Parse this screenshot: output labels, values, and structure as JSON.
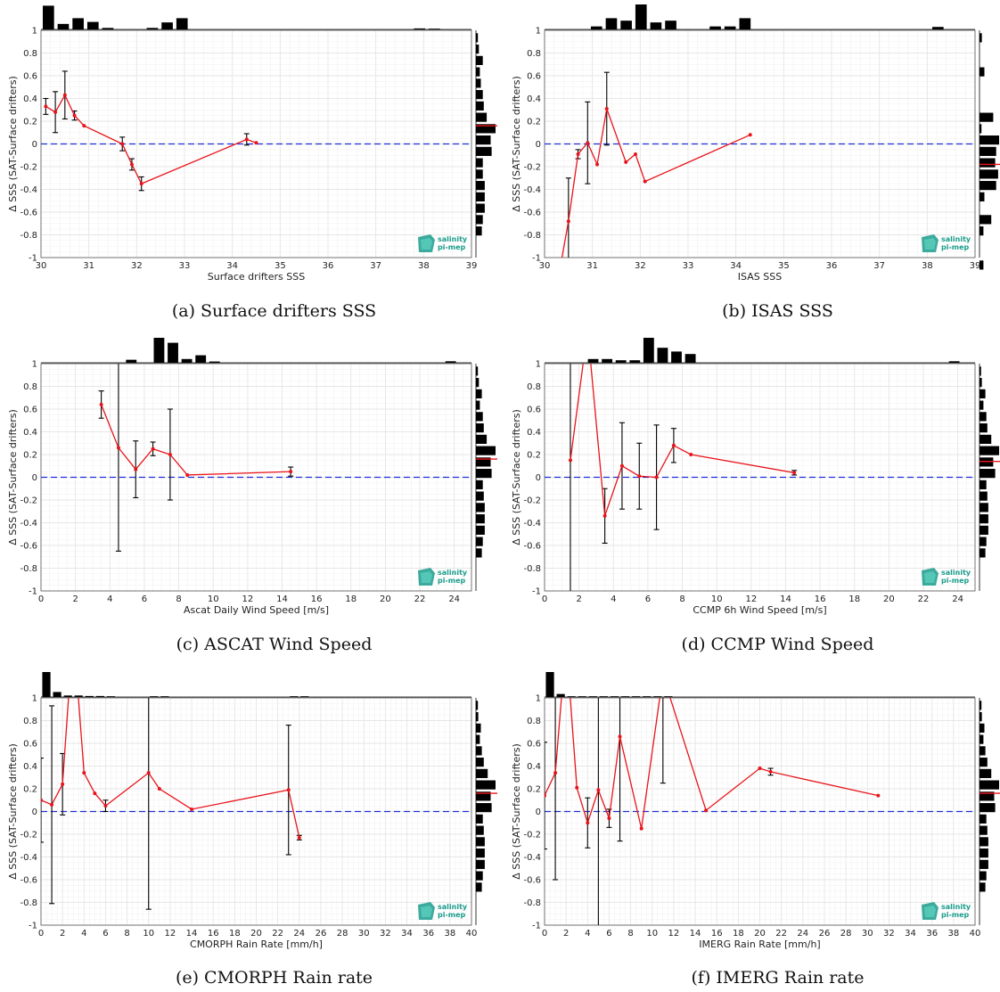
{
  "figure": {
    "ylabel": "Δ SSS (SAT-Surface drifters)",
    "logo": {
      "line1": "salinity",
      "line2": "pi-mep"
    }
  },
  "chart_data": [
    {
      "type": "line",
      "caption": "(a) Surface drifters SSS",
      "xlabel": "Surface drifters SSS",
      "xlim": [
        30,
        39
      ],
      "xticks": [
        30,
        31,
        32,
        33,
        34,
        35,
        36,
        37,
        38,
        39
      ],
      "ylim": [
        -1,
        1
      ],
      "yticks": [
        -1,
        -0.8,
        -0.6,
        -0.4,
        -0.2,
        0,
        0.2,
        0.4,
        0.6,
        0.8,
        1
      ],
      "grid": true,
      "x": [
        30.1,
        30.3,
        30.5,
        30.7,
        30.9,
        31.7,
        31.9,
        32.1,
        34.3,
        34.5
      ],
      "y": [
        0.33,
        0.28,
        0.43,
        0.25,
        0.16,
        0.0,
        -0.18,
        -0.35,
        0.04,
        0.01
      ],
      "err": [
        0.07,
        0.18,
        0.21,
        0.04,
        0.0,
        0.06,
        0.05,
        0.06,
        0.05,
        0.0
      ],
      "top_hist": [
        0.95,
        0.22,
        0.45,
        0.3,
        0.06,
        0.0,
        0.0,
        0.06,
        0.28,
        0.45,
        0.0,
        0.0,
        0.0,
        0.0,
        0.0,
        0.0,
        0.0,
        0.0,
        0.0,
        0.0,
        0.0,
        0.0,
        0.0,
        0.0,
        0.0,
        0.04,
        0.03,
        0.0,
        0.0
      ],
      "right_hist": [
        0.1,
        0.15,
        0.35,
        0.2,
        0.25,
        0.35,
        0.4,
        0.55,
        1.0,
        0.75,
        0.8,
        0.35,
        0.35,
        0.45,
        0.45,
        0.45,
        0.35,
        0.3
      ],
      "right_mean": 0.16
    },
    {
      "type": "line",
      "caption": "(b) ISAS SSS",
      "xlabel": "ISAS SSS",
      "xlim": [
        30,
        39
      ],
      "xticks": [
        30,
        31,
        32,
        33,
        34,
        35,
        36,
        37,
        38,
        39
      ],
      "ylim": [
        -1,
        1
      ],
      "yticks": [
        -1,
        -0.8,
        -0.6,
        -0.4,
        -0.2,
        0,
        0.2,
        0.4,
        0.6,
        0.8,
        1
      ],
      "grid": true,
      "x": [
        30.3,
        30.5,
        30.7,
        30.9,
        31.1,
        31.3,
        31.7,
        31.9,
        32.1,
        34.3
      ],
      "y": [
        -1.15,
        -0.68,
        -0.09,
        0.01,
        -0.18,
        0.31,
        -0.16,
        -0.09,
        -0.33,
        0.08
      ],
      "err": [
        0.0,
        0.38,
        0.04,
        0.36,
        0.0,
        0.32,
        0.0,
        0.0,
        0.0,
        0.0
      ],
      "top_hist": [
        0.0,
        0.0,
        0.0,
        0.12,
        0.45,
        0.35,
        1.0,
        0.28,
        0.35,
        0.0,
        0.0,
        0.12,
        0.12,
        0.45,
        0.0,
        0.0,
        0.0,
        0.0,
        0.0,
        0.0,
        0.0,
        0.0,
        0.0,
        0.0,
        0.0,
        0.0,
        0.1,
        0.0,
        0.0
      ],
      "right_hist": [
        0.12,
        0.0,
        0.0,
        0.25,
        0.0,
        0.0,
        0.0,
        0.7,
        0.1,
        1.0,
        0.85,
        0.8,
        0.95,
        0.85,
        0.25,
        0.0,
        0.6,
        0.2,
        0.0,
        0.0,
        0.2
      ],
      "right_mean": -0.18
    },
    {
      "type": "line",
      "caption": "(c) ASCAT Wind Speed",
      "xlabel": "Ascat Daily Wind Speed [m/s]",
      "xlim": [
        0,
        25
      ],
      "xticks": [
        0,
        2,
        4,
        6,
        8,
        10,
        12,
        14,
        16,
        18,
        20,
        22,
        24
      ],
      "ylim": [
        -1,
        1
      ],
      "yticks": [
        -1,
        -0.8,
        -0.6,
        -0.4,
        -0.2,
        0,
        0.2,
        0.4,
        0.6,
        0.8,
        1
      ],
      "grid": true,
      "x": [
        3.5,
        4.5,
        5.5,
        6.5,
        7.5,
        8.5,
        14.5
      ],
      "y": [
        0.64,
        0.26,
        0.07,
        0.25,
        0.2,
        0.02,
        0.05
      ],
      "err": [
        0.12,
        0.91,
        0.25,
        0.06,
        0.4,
        0.0,
        0.04
      ],
      "top_hist": [
        0.0,
        0.0,
        0.0,
        0.0,
        0.0,
        0.0,
        0.12,
        0.0,
        1.0,
        0.8,
        0.15,
        0.3,
        0.05,
        0.0,
        0.0,
        0.0,
        0.0,
        0.0,
        0.0,
        0.0,
        0.0,
        0.0,
        0.0,
        0.0,
        0.0,
        0.0,
        0.0,
        0.0,
        0.0,
        0.06,
        0.0
      ],
      "right_hist": [
        0.1,
        0.15,
        0.3,
        0.2,
        0.35,
        0.4,
        0.55,
        1.0,
        0.75,
        0.8,
        0.35,
        0.4,
        0.45,
        0.45,
        0.45,
        0.35,
        0.3
      ],
      "right_mean": 0.16
    },
    {
      "type": "line",
      "caption": "(d) CCMP Wind Speed",
      "xlabel": "CCMP 6h Wind Speed [m/s]",
      "xlim": [
        0,
        25
      ],
      "xticks": [
        0,
        2,
        4,
        6,
        8,
        10,
        12,
        14,
        16,
        18,
        20,
        22,
        24
      ],
      "ylim": [
        -1,
        1
      ],
      "yticks": [
        -1,
        -0.8,
        -0.6,
        -0.4,
        -0.2,
        0,
        0.2,
        0.4,
        0.6,
        0.8,
        1
      ],
      "grid": true,
      "x": [
        1.5,
        2.5,
        3.5,
        4.5,
        5.5,
        6.5,
        7.5,
        8.5,
        14.5
      ],
      "y": [
        0.15,
        1.3,
        -0.34,
        0.1,
        0.01,
        0.0,
        0.28,
        0.2,
        0.04
      ],
      "err": [
        1.85,
        0.0,
        0.24,
        0.38,
        0.29,
        0.46,
        0.15,
        0.0,
        0.02
      ],
      "top_hist": [
        0.0,
        0.0,
        0.0,
        0.15,
        0.15,
        0.1,
        0.1,
        1.0,
        0.6,
        0.45,
        0.35,
        0.0,
        0.0,
        0.0,
        0.0,
        0.0,
        0.0,
        0.0,
        0.0,
        0.0,
        0.0,
        0.0,
        0.0,
        0.0,
        0.0,
        0.0,
        0.0,
        0.0,
        0.0,
        0.06,
        0.0
      ],
      "right_hist": [
        0.08,
        0.12,
        0.3,
        0.2,
        0.35,
        0.4,
        0.6,
        1.0,
        0.7,
        0.8,
        0.35,
        0.4,
        0.45,
        0.45,
        0.45,
        0.35,
        0.3
      ],
      "right_mean": 0.14
    },
    {
      "type": "line",
      "caption": "(e) CMORPH Rain rate",
      "xlabel": "CMORPH Rain Rate [mm/h]",
      "xlim": [
        0,
        40
      ],
      "xticks": [
        0,
        2,
        4,
        6,
        8,
        10,
        12,
        14,
        16,
        18,
        20,
        22,
        24,
        26,
        28,
        30,
        32,
        34,
        36,
        38,
        40
      ],
      "ylim": [
        -1,
        1
      ],
      "yticks": [
        -1,
        -0.8,
        -0.6,
        -0.4,
        -0.2,
        0,
        0.2,
        0.4,
        0.6,
        0.8,
        1
      ],
      "grid": true,
      "x": [
        0,
        1,
        2,
        3,
        4,
        5,
        6,
        10,
        11,
        14,
        23,
        24
      ],
      "y": [
        0.1,
        0.06,
        0.24,
        1.6,
        0.34,
        0.16,
        0.05,
        0.34,
        0.2,
        0.02,
        0.19,
        -0.23
      ],
      "err": [
        0.37,
        0.87,
        0.27,
        0.0,
        0.0,
        0.0,
        0.05,
        1.2,
        0.0,
        0.0,
        0.57,
        0.02
      ],
      "top_hist": [
        1.0,
        0.2,
        0.06,
        0.06,
        0.04,
        0.04,
        0.03,
        0.0,
        0.0,
        0.0,
        0.03,
        0.03,
        0.0,
        0.0,
        0.0,
        0.0,
        0.0,
        0.0,
        0.0,
        0.0,
        0.0,
        0.0,
        0.0,
        0.03,
        0.03,
        0.0,
        0.0,
        0.0,
        0.0,
        0.0,
        0.0,
        0.0,
        0.0,
        0.0,
        0.0,
        0.0,
        0.0,
        0.0,
        0.0,
        0.0
      ],
      "right_hist": [
        0.1,
        0.12,
        0.25,
        0.2,
        0.3,
        0.4,
        0.6,
        1.0,
        0.75,
        0.8,
        0.35,
        0.4,
        0.45,
        0.45,
        0.45,
        0.35,
        0.3
      ],
      "right_mean": 0.16
    },
    {
      "type": "line",
      "caption": "(f) IMERG Rain rate",
      "xlabel": "IMERG Rain Rate [mm/h]",
      "xlim": [
        0,
        40
      ],
      "xticks": [
        0,
        2,
        4,
        6,
        8,
        10,
        12,
        14,
        16,
        18,
        20,
        22,
        24,
        26,
        28,
        30,
        32,
        34,
        36,
        38,
        40
      ],
      "ylim": [
        -1,
        1
      ],
      "yticks": [
        -1,
        -0.8,
        -0.6,
        -0.4,
        -0.2,
        0,
        0.2,
        0.4,
        0.6,
        0.8,
        1
      ],
      "grid": true,
      "x": [
        0,
        1,
        2,
        3,
        4,
        5,
        6,
        7,
        9,
        11,
        15,
        20,
        21,
        31
      ],
      "y": [
        0.14,
        0.34,
        1.5,
        0.21,
        -0.1,
        0.19,
        -0.06,
        0.66,
        -0.15,
        1.2,
        0.01,
        0.38,
        0.35,
        0.14
      ],
      "err": [
        0.47,
        0.94,
        0.0,
        0.0,
        0.22,
        1.2,
        0.08,
        0.92,
        0.0,
        0.95,
        0.0,
        0.0,
        0.03,
        0.0
      ],
      "top_hist": [
        1.0,
        0.12,
        0.03,
        0.03,
        0.03,
        0.03,
        0.03,
        0.03,
        0.03,
        0.03,
        0.03,
        0.03,
        0.0,
        0.0,
        0.0,
        0.0,
        0.0,
        0.0,
        0.0,
        0.0,
        0.0,
        0.0,
        0.0,
        0.0,
        0.0,
        0.0,
        0.0,
        0.0,
        0.0,
        0.0,
        0.0,
        0.0,
        0.0,
        0.0,
        0.0,
        0.0,
        0.0,
        0.0,
        0.0,
        0.0
      ],
      "right_hist": [
        0.1,
        0.12,
        0.25,
        0.2,
        0.3,
        0.4,
        0.6,
        1.0,
        0.75,
        0.8,
        0.35,
        0.4,
        0.45,
        0.45,
        0.45,
        0.35,
        0.3
      ],
      "right_mean": 0.16
    }
  ],
  "colors": {
    "line": "#e8141b",
    "zero": "#1f2fd6",
    "grid": "#e6e6e6",
    "hist": "#000000",
    "logo": "#1a9c8c"
  }
}
